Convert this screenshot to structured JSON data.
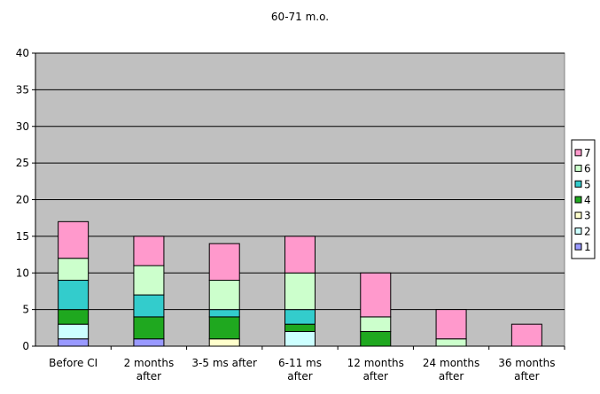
{
  "chart_data": {
    "type": "bar",
    "stacked": true,
    "title": "60-71 m.o.",
    "xlabel": "",
    "ylabel": "",
    "ylim": [
      0,
      40
    ],
    "yticks": [
      0,
      5,
      10,
      15,
      20,
      25,
      30,
      35,
      40
    ],
    "grid": true,
    "legend_position": "right",
    "categories": [
      [
        "Before CI"
      ],
      [
        "2 months",
        "after"
      ],
      [
        "3-5 ms after"
      ],
      [
        "6-11 ms",
        "after"
      ],
      [
        "12 months",
        "after"
      ],
      [
        "24 months",
        "after"
      ],
      [
        "36 months",
        "after"
      ]
    ],
    "series": [
      {
        "name": "1",
        "color": "#9999ff",
        "values": [
          1,
          1,
          0,
          0,
          0,
          0,
          0
        ]
      },
      {
        "name": "2",
        "color": "#ccffff",
        "values": [
          2,
          0,
          0,
          2,
          0,
          0,
          0
        ]
      },
      {
        "name": "3",
        "color": "#ffffcc",
        "values": [
          0,
          0,
          1,
          0,
          0,
          0,
          0
        ]
      },
      {
        "name": "4",
        "color": "#1fa81f",
        "values": [
          2,
          3,
          3,
          1,
          2,
          0,
          0
        ]
      },
      {
        "name": "5",
        "color": "#33cccc",
        "values": [
          4,
          3,
          1,
          2,
          0,
          0,
          0
        ]
      },
      {
        "name": "6",
        "color": "#ccffcc",
        "values": [
          3,
          4,
          4,
          5,
          2,
          1,
          0
        ]
      },
      {
        "name": "7",
        "color": "#ff99cc",
        "values": [
          5,
          4,
          5,
          5,
          6,
          4,
          3
        ]
      }
    ],
    "plot_background": "#c0c0c0"
  }
}
